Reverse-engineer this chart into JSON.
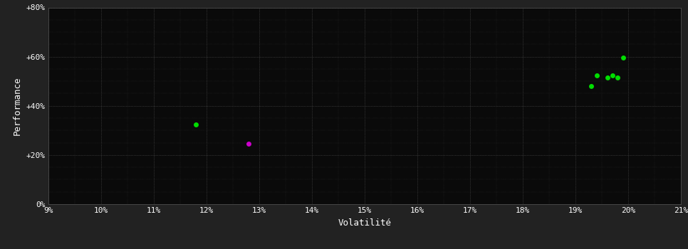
{
  "fig_background": "#222222",
  "plot_bg_color": "#0a0a0a",
  "grid_color": "#555555",
  "text_color": "#ffffff",
  "xlabel": "Volatilité",
  "ylabel": "Performance",
  "xlim": [
    0.09,
    0.21
  ],
  "ylim": [
    0.0,
    0.8
  ],
  "xticks": [
    0.09,
    0.1,
    0.11,
    0.12,
    0.13,
    0.14,
    0.15,
    0.16,
    0.17,
    0.18,
    0.19,
    0.2,
    0.21
  ],
  "yticks": [
    0.0,
    0.2,
    0.4,
    0.6,
    0.8
  ],
  "ytick_labels": [
    "0%",
    "+20%",
    "+40%",
    "+60%",
    "+80%"
  ],
  "xtick_labels": [
    "9%",
    "10%",
    "11%",
    "12%",
    "13%",
    "14%",
    "15%",
    "16%",
    "17%",
    "18%",
    "19%",
    "20%",
    "21%"
  ],
  "green_points": [
    [
      0.118,
      0.325
    ],
    [
      0.193,
      0.48
    ],
    [
      0.194,
      0.525
    ],
    [
      0.196,
      0.515
    ],
    [
      0.197,
      0.525
    ],
    [
      0.198,
      0.515
    ],
    [
      0.199,
      0.595
    ]
  ],
  "magenta_points": [
    [
      0.128,
      0.245
    ]
  ],
  "green_color": "#00dd00",
  "magenta_color": "#cc00cc",
  "marker_size": 5
}
